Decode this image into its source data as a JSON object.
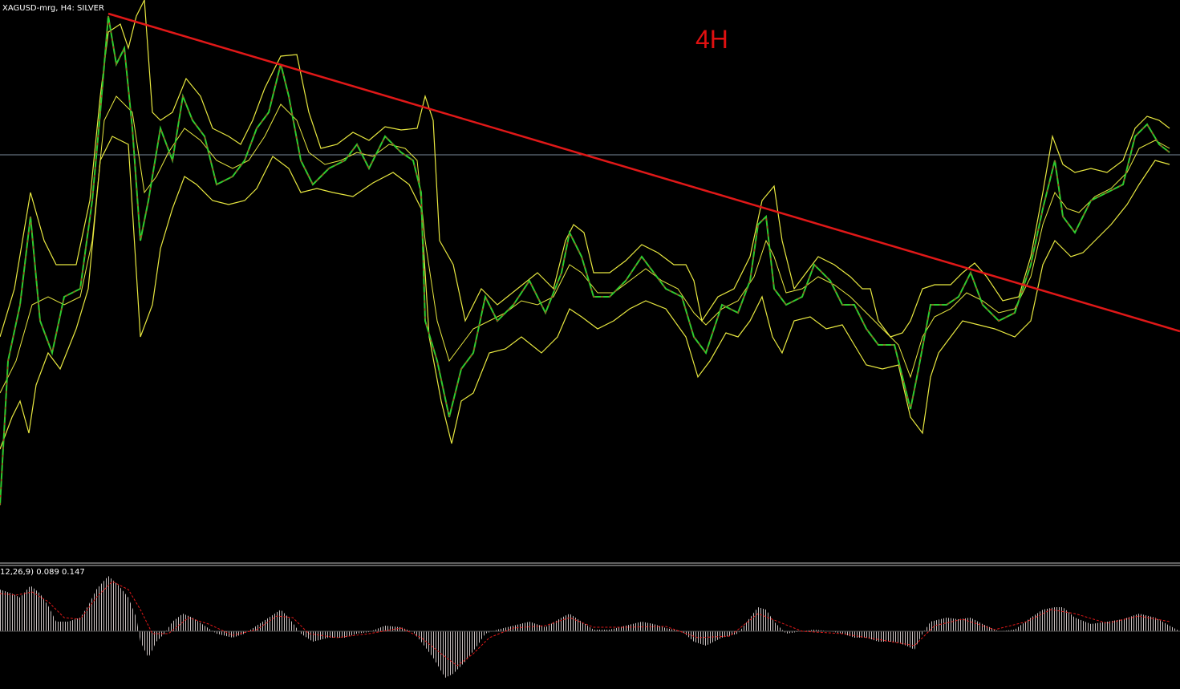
{
  "header": {
    "symbol": "XAGUSD-mrg, H4:  SILVER",
    "timeframe_note": "4H"
  },
  "indicator": {
    "label": "12,26,9) 0.089 0.147"
  }
}
